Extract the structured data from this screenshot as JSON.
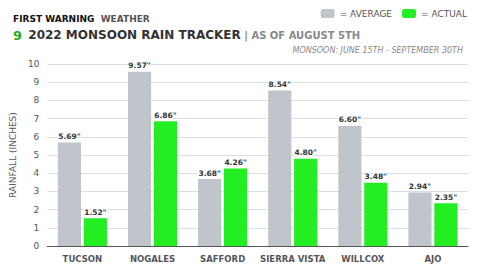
{
  "chart_data": {
    "type": "bar",
    "title": "2022 MONSOON RAIN TRACKER",
    "subtitle": "MONSOON: JUNE 15TH - SEPTEMBER 30TH",
    "annotations": [
      "FIRST WARNING",
      "WEATHER",
      "9",
      " | AS OF AUGUST 5TH"
    ],
    "ylabel": "RAINFALL (INCHES)",
    "categories": [
      "TUCSON",
      "NOGALES",
      "SAFFORD",
      "SIERRA VISTA",
      "WILLCOX",
      "AJO"
    ],
    "series": [
      {
        "name": "= AVERAGE",
        "color": "#c0c5cc",
        "values": [
          5.69,
          9.57,
          3.68,
          8.54,
          6.6,
          2.94
        ],
        "value_labels": [
          "5.69\"",
          "9.57\"",
          "3.68\"",
          "8.54\"",
          "6.60\"",
          "2.94\""
        ]
      },
      {
        "name": "= ACTUAL",
        "color": "#22ee22",
        "values": [
          1.52,
          6.86,
          4.26,
          4.8,
          3.48,
          2.35
        ],
        "value_labels": [
          "1.52\"",
          "6.86\"",
          "4.26\"",
          "4.80\"",
          "3.48\"",
          "2.35\""
        ]
      }
    ],
    "ylim": [
      0,
      10
    ],
    "yticks": [
      0,
      1,
      2,
      3,
      4,
      5,
      6,
      7,
      8,
      9,
      10
    ],
    "grid": true,
    "legend": "upper right",
    "data_labels": true
  }
}
